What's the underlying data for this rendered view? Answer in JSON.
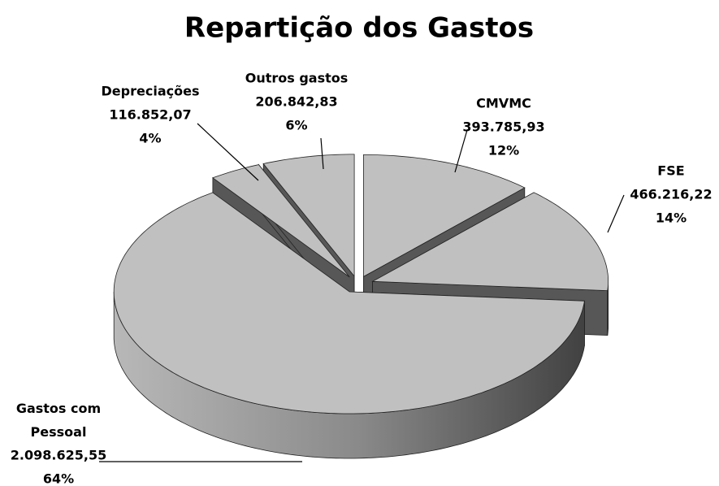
{
  "chart_data": {
    "type": "pie3d",
    "title": "Repartição dos Gastos",
    "categories": [
      "CMVMC",
      "FSE",
      "Gastos com Pessoal",
      "Depreciações",
      "Outros gastos"
    ],
    "values": [
      393785.93,
      466216.22,
      2098625.55,
      116852.07,
      206842.83
    ],
    "value_labels": [
      "393.785,93",
      "466.216,22",
      "2.098.625,55",
      "116.852,07",
      "206.842,83"
    ],
    "percentages": [
      12,
      14,
      64,
      4,
      6
    ],
    "percentage_labels": [
      "12%",
      "14%",
      "64%",
      "4%",
      "6%"
    ],
    "color": "#c0c0c0"
  }
}
